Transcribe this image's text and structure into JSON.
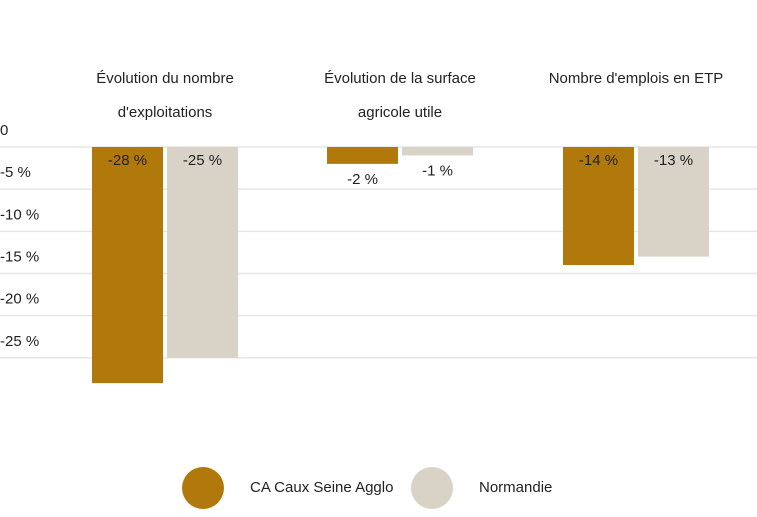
{
  "chart_data": {
    "type": "bar",
    "categories": [
      "Évolution du nombre d'exploitations",
      "Évolution de la surface agricole utile",
      "Nombre d'emplois en ETP"
    ],
    "series": [
      {
        "name": "CA Caux Seine Agglo",
        "color": "#b1790c",
        "values": [
          -28,
          -2,
          -14
        ],
        "value_labels": [
          "-28 %",
          "-2 %",
          "-14 %"
        ]
      },
      {
        "name": "Normandie",
        "color": "#d8d3c6",
        "values": [
          -25,
          -1,
          -13
        ],
        "value_labels": [
          "-25 %",
          "-1 %",
          "-13 %"
        ]
      }
    ],
    "ylim": [
      -30,
      0
    ],
    "yticks": [
      0,
      {
        "value": -5,
        "label": "-5 %"
      },
      {
        "value": -10,
        "label": "-10 %"
      },
      {
        "value": -15,
        "label": "-15 %"
      },
      {
        "value": -20,
        "label": "-20 %"
      },
      {
        "value": -25,
        "label": "-25 %"
      }
    ],
    "grid": true,
    "legend": "bottom"
  }
}
